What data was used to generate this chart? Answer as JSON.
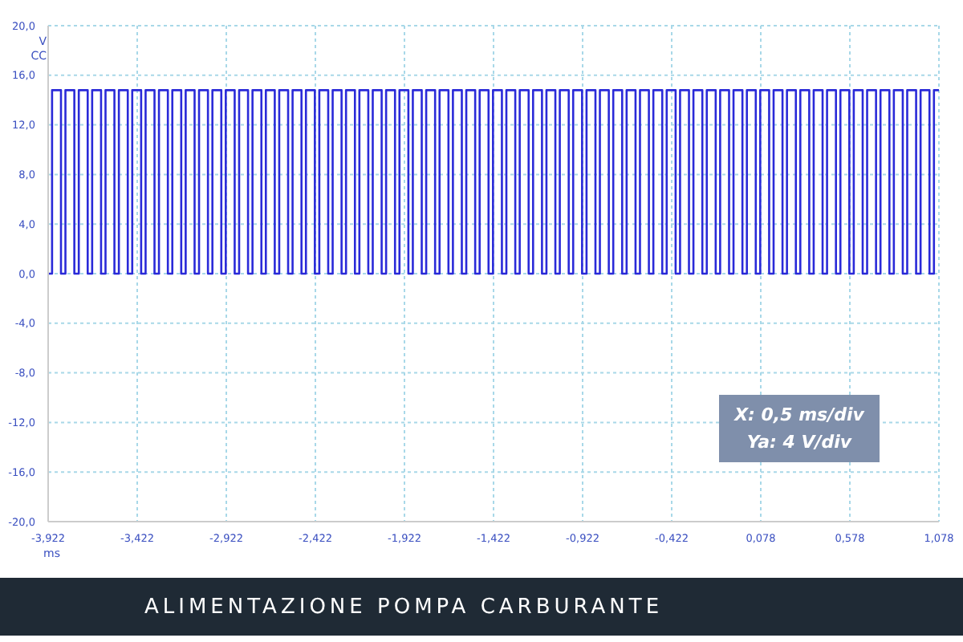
{
  "chart_data": {
    "type": "step",
    "title": "ALIMENTAZIONE POMPA CARBURANTE",
    "xlabel": "ms",
    "ylabel": "V CC",
    "annotations": [
      "X: 0,5 ms/div",
      "Ya: 4 V/div"
    ],
    "grid": true,
    "line_style": "solid",
    "marker": "none",
    "xlim": [
      -3.922,
      1.078
    ],
    "xticks": [
      {
        "value": -3.922,
        "label": "-3,922"
      },
      {
        "value": -3.422,
        "label": "-3,422"
      },
      {
        "value": -2.922,
        "label": "-2,922"
      },
      {
        "value": -2.422,
        "label": "-2,422"
      },
      {
        "value": -1.922,
        "label": "-1,922"
      },
      {
        "value": -1.422,
        "label": "-1,422"
      },
      {
        "value": -0.922,
        "label": "-0,922"
      },
      {
        "value": -0.422,
        "label": "-0,422"
      },
      {
        "value": 0.078,
        "label": "0,078"
      },
      {
        "value": 0.578,
        "label": "0,578"
      },
      {
        "value": 1.078,
        "label": "1,078"
      }
    ],
    "ylim": [
      -20,
      20
    ],
    "yticks": [
      {
        "value": -20,
        "label": "-20,0"
      },
      {
        "value": -16,
        "label": "-16,0"
      },
      {
        "value": -12,
        "label": "-12,0"
      },
      {
        "value": -8,
        "label": "-8,0"
      },
      {
        "value": -4,
        "label": "-4,0"
      },
      {
        "value": 0,
        "label": "0,0"
      },
      {
        "value": 4,
        "label": "4,0"
      },
      {
        "value": 8,
        "label": "8,0"
      },
      {
        "value": 12,
        "label": "12,0"
      },
      {
        "value": 16,
        "label": "16,0"
      },
      {
        "value": 20,
        "label": "20,0"
      }
    ],
    "series": [
      {
        "color": "#2a2ad8",
        "x": [
          -3.922,
          -3.9,
          -3.85,
          -3.825,
          -3.775,
          -3.75,
          -3.7,
          -3.675,
          -3.625,
          -3.6,
          -3.55,
          -3.525,
          -3.475,
          -3.45,
          -3.4,
          -3.375,
          -3.325,
          -3.3,
          -3.25,
          -3.225,
          -3.175,
          -3.15,
          -3.1,
          -3.075,
          -3.025,
          -3,
          -2.95,
          -2.925,
          -2.875,
          -2.85,
          -2.8,
          -2.775,
          -2.725,
          -2.7,
          -2.65,
          -2.625,
          -2.575,
          -2.55,
          -2.5,
          -2.475,
          -2.425,
          -2.4,
          -2.35,
          -2.325,
          -2.275,
          -2.25,
          -2.2,
          -2.175,
          -2.125,
          -2.1,
          -2.05,
          -2.025,
          -1.975,
          -1.95,
          -1.9,
          -1.875,
          -1.825,
          -1.8,
          -1.75,
          -1.725,
          -1.675,
          -1.65,
          -1.6,
          -1.575,
          -1.525,
          -1.5,
          -1.45,
          -1.425,
          -1.375,
          -1.35,
          -1.3,
          -1.275,
          -1.225,
          -1.2,
          -1.15,
          -1.125,
          -1.075,
          -1.05,
          -1,
          -0.975,
          -0.925,
          -0.9,
          -0.85,
          -0.825,
          -0.775,
          -0.75,
          -0.7,
          -0.675,
          -0.625,
          -0.6,
          -0.55,
          -0.525,
          -0.475,
          -0.45,
          -0.4,
          -0.375,
          -0.325,
          -0.3,
          -0.25,
          -0.225,
          -0.175,
          -0.15,
          -0.1,
          -0.075,
          -0.025,
          0,
          0.05,
          0.075,
          0.125,
          0.15,
          0.2,
          0.225,
          0.275,
          0.3,
          0.35,
          0.375,
          0.425,
          0.45,
          0.5,
          0.525,
          0.575,
          0.6,
          0.65,
          0.675,
          0.725,
          0.75,
          0.8,
          0.825,
          0.875,
          0.9,
          0.95,
          0.975,
          1.025,
          1.05,
          1.078
        ],
        "values": [
          0,
          14.8,
          0,
          14.8,
          0,
          14.8,
          0,
          14.8,
          0,
          14.8,
          0,
          14.8,
          0,
          14.8,
          0,
          14.8,
          0,
          14.8,
          0,
          14.8,
          0,
          14.8,
          0,
          14.8,
          0,
          14.8,
          0,
          14.8,
          0,
          14.8,
          0,
          14.8,
          0,
          14.8,
          0,
          14.8,
          0,
          14.8,
          0,
          14.8,
          0,
          14.8,
          0,
          14.8,
          0,
          14.8,
          0,
          14.8,
          0,
          14.8,
          0,
          14.8,
          0,
          14.8,
          0,
          14.8,
          0,
          14.8,
          0,
          14.8,
          0,
          14.8,
          0,
          14.8,
          0,
          14.8,
          0,
          14.8,
          0,
          14.8,
          0,
          14.8,
          0,
          14.8,
          0,
          14.8,
          0,
          14.8,
          0,
          14.8,
          0,
          14.8,
          0,
          14.8,
          0,
          14.8,
          0,
          14.8,
          0,
          14.8,
          0,
          14.8,
          0,
          14.8,
          0,
          14.8,
          0,
          14.8,
          0,
          14.8,
          0,
          14.8,
          0,
          14.8,
          0,
          14.8,
          0,
          14.8,
          0,
          14.8,
          0,
          14.8,
          0,
          14.8,
          0,
          14.8,
          0,
          14.8,
          0,
          14.8,
          0,
          14.8,
          0,
          14.8,
          0,
          14.8,
          0,
          14.8,
          0,
          14.8,
          0,
          14.8,
          0,
          14.8,
          14.8
        ]
      }
    ]
  }
}
